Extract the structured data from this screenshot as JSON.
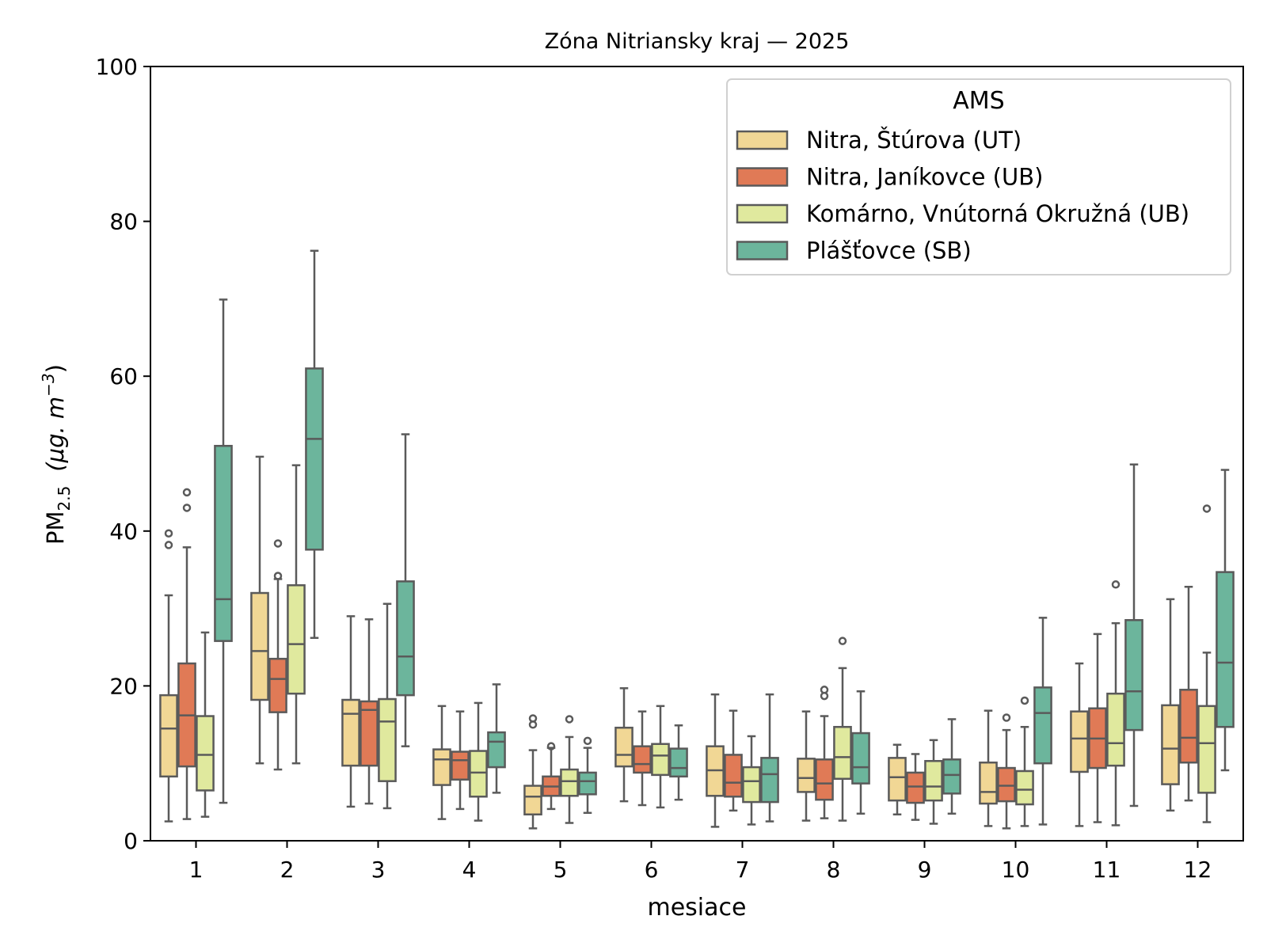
{
  "chart_data": {
    "type": "box",
    "title": "Zóna Nitriansky kraj —  2025",
    "xlabel": "mesiace",
    "ylabel": {
      "main": "PM",
      "sub": "2.5",
      "unit_open": "(μg. m",
      "unit_sup": "−3",
      "unit_close": ")"
    },
    "ylim": [
      0,
      100
    ],
    "yticks": [
      0,
      20,
      40,
      60,
      80,
      100
    ],
    "categories": [
      "1",
      "2",
      "3",
      "4",
      "5",
      "6",
      "7",
      "8",
      "9",
      "10",
      "11",
      "12"
    ],
    "grid": false,
    "legend": {
      "title": "AMS",
      "placement": "top-right"
    },
    "series": [
      {
        "name": "Nitra, Štúrova (UT)",
        "color": "#f1d795",
        "boxes": [
          {
            "low": 2.5,
            "q1": 8.3,
            "median": 14.5,
            "q3": 18.8,
            "high": 31.7,
            "outliers": [
              38.2,
              39.7
            ]
          },
          {
            "low": 10,
            "q1": 18.2,
            "median": 24.5,
            "q3": 32,
            "high": 49.6,
            "outliers": []
          },
          {
            "low": 4.4,
            "q1": 9.7,
            "median": 16.4,
            "q3": 18.2,
            "high": 29,
            "outliers": []
          },
          {
            "low": 2.8,
            "q1": 7.2,
            "median": 10.5,
            "q3": 11.8,
            "high": 17.4,
            "outliers": []
          },
          {
            "low": 1.6,
            "q1": 3.4,
            "median": 5.7,
            "q3": 7.1,
            "high": 11.7,
            "outliers": [
              15,
              15.8
            ]
          },
          {
            "low": 5.1,
            "q1": 9.6,
            "median": 11.1,
            "q3": 14.6,
            "high": 19.7,
            "outliers": []
          },
          {
            "low": 1.8,
            "q1": 5.8,
            "median": 9.1,
            "q3": 12.2,
            "high": 18.9,
            "outliers": []
          },
          {
            "low": 2.6,
            "q1": 6.3,
            "median": 8.1,
            "q3": 10.6,
            "high": 16.7,
            "outliers": []
          },
          {
            "low": 3.4,
            "q1": 5.2,
            "median": 8.2,
            "q3": 10.7,
            "high": 12.4,
            "outliers": []
          },
          {
            "low": 1.9,
            "q1": 4.8,
            "median": 6.3,
            "q3": 10.1,
            "high": 16.8,
            "outliers": []
          },
          {
            "low": 1.9,
            "q1": 8.9,
            "median": 13.2,
            "q3": 16.7,
            "high": 22.9,
            "outliers": []
          },
          {
            "low": 3.9,
            "q1": 7.3,
            "median": 11.9,
            "q3": 17.5,
            "high": 31.2,
            "outliers": []
          }
        ]
      },
      {
        "name": "Nitra, Janíkovce (UB)",
        "color": "#e07a56",
        "boxes": [
          {
            "low": 2.8,
            "q1": 9.6,
            "median": 16.2,
            "q3": 22.9,
            "high": 37.9,
            "outliers": [
              43,
              45
            ]
          },
          {
            "low": 9.2,
            "q1": 16.6,
            "median": 20.9,
            "q3": 23.5,
            "high": 33.8,
            "outliers": [
              34.2,
              38.4
            ]
          },
          {
            "low": 4.8,
            "q1": 9.7,
            "median": 16.9,
            "q3": 18,
            "high": 28.6,
            "outliers": []
          },
          {
            "low": 4.1,
            "q1": 7.9,
            "median": 10.4,
            "q3": 11.5,
            "high": 16.7,
            "outliers": []
          },
          {
            "low": 4.1,
            "q1": 5.8,
            "median": 7,
            "q3": 8.3,
            "high": 12,
            "outliers": [
              12.2
            ]
          },
          {
            "low": 4.6,
            "q1": 8.8,
            "median": 9.9,
            "q3": 12.2,
            "high": 16.7,
            "outliers": []
          },
          {
            "low": 3.9,
            "q1": 5.7,
            "median": 7.5,
            "q3": 11.1,
            "high": 16.8,
            "outliers": []
          },
          {
            "low": 2.9,
            "q1": 5.3,
            "median": 7.4,
            "q3": 10.5,
            "high": 16.1,
            "outliers": [
              18.7,
              19.5
            ]
          },
          {
            "low": 2.7,
            "q1": 4.9,
            "median": 7,
            "q3": 8.8,
            "high": 11.2,
            "outliers": []
          },
          {
            "low": 1.6,
            "q1": 5.1,
            "median": 7.1,
            "q3": 9.4,
            "high": 14.3,
            "outliers": [
              15.9
            ]
          },
          {
            "low": 2.4,
            "q1": 9.4,
            "median": 13.2,
            "q3": 17.1,
            "high": 26.7,
            "outliers": []
          },
          {
            "low": 5.2,
            "q1": 10.1,
            "median": 13.3,
            "q3": 19.5,
            "high": 32.8,
            "outliers": []
          }
        ]
      },
      {
        "name": "Komárno, Vnútorná Okružná (UB)",
        "color": "#e0e99e",
        "boxes": [
          {
            "low": 3.1,
            "q1": 6.5,
            "median": 11.1,
            "q3": 16.1,
            "high": 26.9,
            "outliers": []
          },
          {
            "low": 10,
            "q1": 19,
            "median": 25.4,
            "q3": 33,
            "high": 48.5,
            "outliers": []
          },
          {
            "low": 4.2,
            "q1": 7.7,
            "median": 15.4,
            "q3": 18.3,
            "high": 30.6,
            "outliers": []
          },
          {
            "low": 2.6,
            "q1": 5.7,
            "median": 8.8,
            "q3": 11.6,
            "high": 17.8,
            "outliers": []
          },
          {
            "low": 2.3,
            "q1": 5.8,
            "median": 7.7,
            "q3": 9.2,
            "high": 13.4,
            "outliers": [
              15.7
            ]
          },
          {
            "low": 4.3,
            "q1": 8.5,
            "median": 11,
            "q3": 12.5,
            "high": 17.4,
            "outliers": []
          },
          {
            "low": 2.1,
            "q1": 5,
            "median": 7.7,
            "q3": 9.5,
            "high": 13.5,
            "outliers": []
          },
          {
            "low": 2.6,
            "q1": 8,
            "median": 10.8,
            "q3": 14.7,
            "high": 22.3,
            "outliers": [
              25.8
            ]
          },
          {
            "low": 2.2,
            "q1": 5.2,
            "median": 7,
            "q3": 10.3,
            "high": 13,
            "outliers": []
          },
          {
            "low": 1.9,
            "q1": 4.7,
            "median": 6.6,
            "q3": 9,
            "high": 14.7,
            "outliers": [
              18.1
            ]
          },
          {
            "low": 2,
            "q1": 9.7,
            "median": 12.6,
            "q3": 19,
            "high": 28.1,
            "outliers": [
              33.1
            ]
          },
          {
            "low": 2.4,
            "q1": 6.2,
            "median": 12.6,
            "q3": 17.4,
            "high": 24.3,
            "outliers": [
              42.9
            ]
          }
        ]
      },
      {
        "name": "Plášťovce (SB)",
        "color": "#6cb59c",
        "boxes": [
          {
            "low": 4.9,
            "q1": 25.8,
            "median": 31.2,
            "q3": 51,
            "high": 69.9,
            "outliers": []
          },
          {
            "low": 26.2,
            "q1": 37.6,
            "median": 51.9,
            "q3": 61,
            "high": 76.2,
            "outliers": []
          },
          {
            "low": 12.2,
            "q1": 18.8,
            "median": 23.8,
            "q3": 33.5,
            "high": 52.5,
            "outliers": []
          },
          {
            "low": 6.2,
            "q1": 9.5,
            "median": 12.8,
            "q3": 14,
            "high": 20.2,
            "outliers": []
          },
          {
            "low": 3.6,
            "q1": 6,
            "median": 7.7,
            "q3": 8.8,
            "high": 12,
            "outliers": [
              12.9
            ]
          },
          {
            "low": 5.3,
            "q1": 8.3,
            "median": 9.4,
            "q3": 11.9,
            "high": 14.9,
            "outliers": []
          },
          {
            "low": 2.5,
            "q1": 5,
            "median": 8.6,
            "q3": 10.7,
            "high": 18.9,
            "outliers": []
          },
          {
            "low": 3.5,
            "q1": 7.4,
            "median": 9.5,
            "q3": 13.9,
            "high": 19.3,
            "outliers": []
          },
          {
            "low": 3.5,
            "q1": 6.1,
            "median": 8.5,
            "q3": 10.5,
            "high": 15.7,
            "outliers": []
          },
          {
            "low": 2.1,
            "q1": 10,
            "median": 16.5,
            "q3": 19.8,
            "high": 28.8,
            "outliers": []
          },
          {
            "low": 4.5,
            "q1": 14.3,
            "median": 19.3,
            "q3": 28.5,
            "high": 48.6,
            "outliers": []
          },
          {
            "low": 9.1,
            "q1": 14.7,
            "median": 23,
            "q3": 34.7,
            "high": 47.9,
            "outliers": []
          }
        ]
      }
    ]
  }
}
